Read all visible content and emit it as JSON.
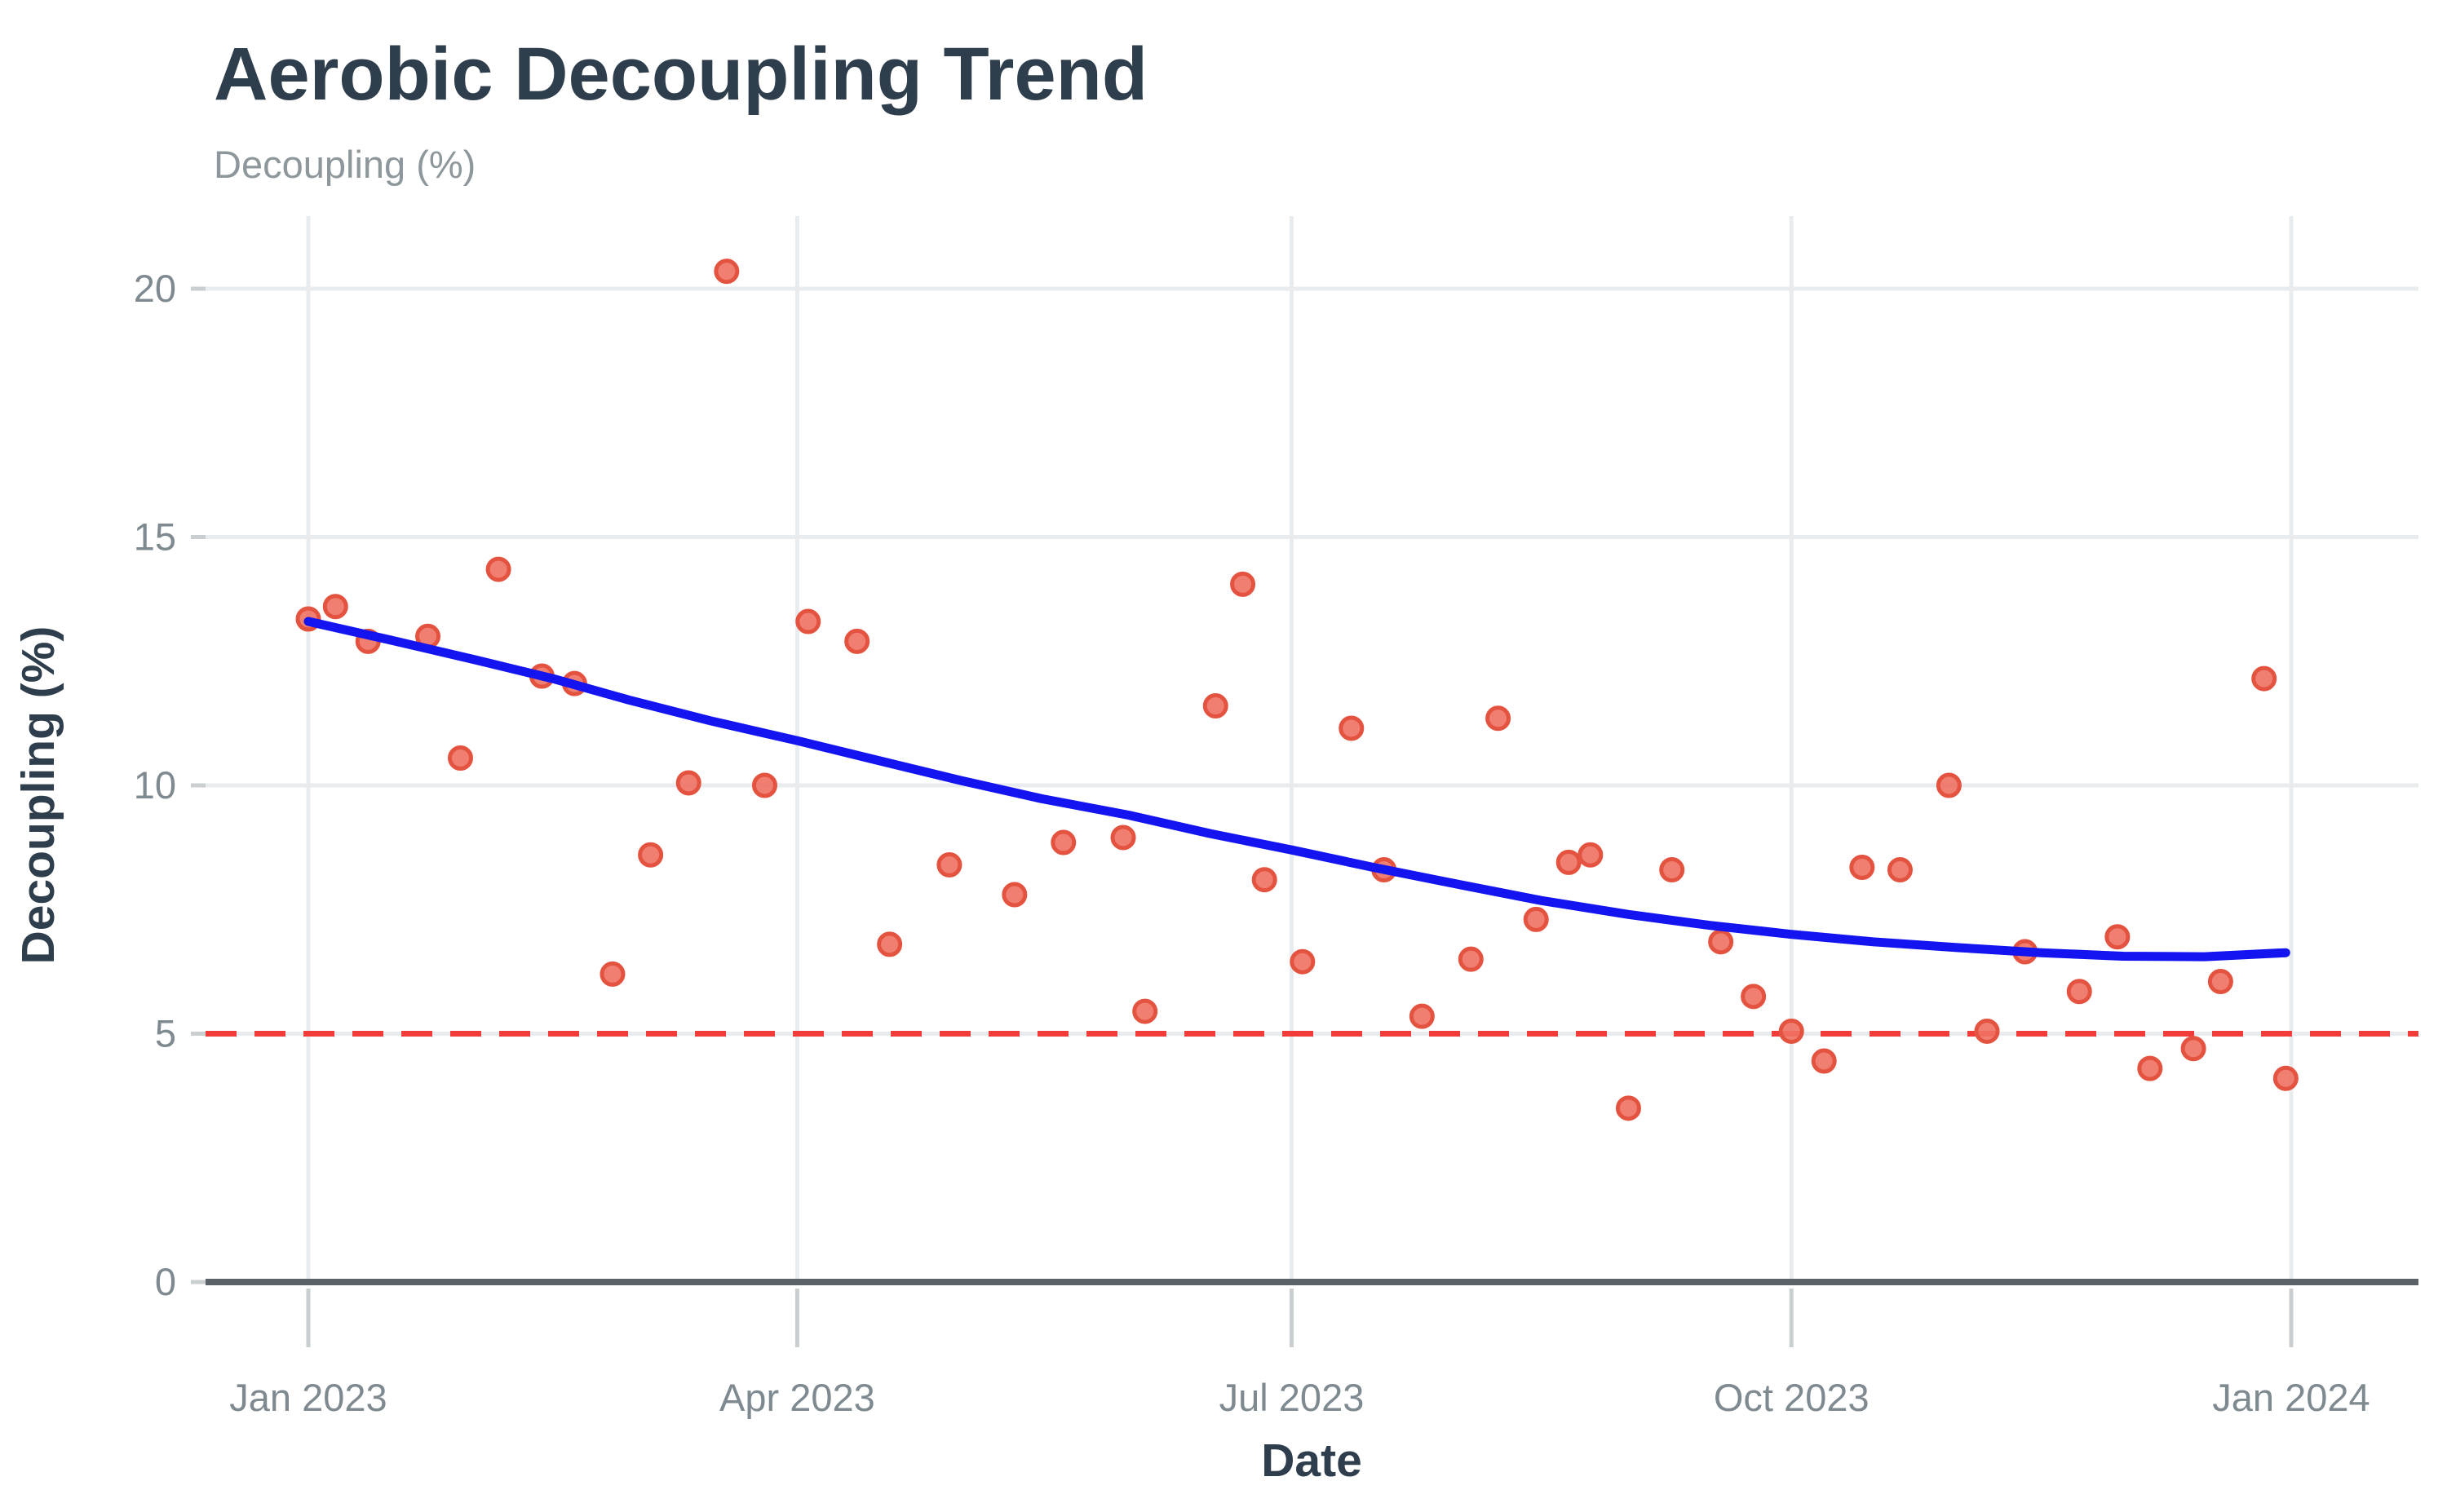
{
  "chart": {
    "title": "Aerobic Decoupling Trend",
    "subtitle": "Decoupling (%)",
    "x_axis_title": "Date",
    "y_axis_title": "Decoupling (%)"
  },
  "chart_data": {
    "type": "scatter",
    "title": "Aerobic Decoupling Trend",
    "subtitle": "Decoupling (%)",
    "xlabel": "Date",
    "ylabel": "Decoupling (%)",
    "x_range": [
      "2023-01-01",
      "2024-01-01"
    ],
    "ylim": [
      0,
      21.5
    ],
    "grid": true,
    "legend": "none",
    "x_ticks": [
      "2023-01-01",
      "2023-04-01",
      "2023-07-01",
      "2023-10-01",
      "2024-01-01"
    ],
    "x_tick_labels": [
      "Jan 2023",
      "Apr 2023",
      "Jul 2023",
      "Oct 2023",
      "Jan 2024"
    ],
    "y_ticks": [
      0,
      5,
      10,
      15,
      20
    ],
    "y_tick_labels": [
      "0",
      "5",
      "10",
      "15",
      "20"
    ],
    "threshold_line": {
      "value": 5,
      "style": "dashed",
      "color": "#f23c39"
    },
    "points": [
      {
        "date": "2023-01-01",
        "value": 13.35
      },
      {
        "date": "2023-01-06",
        "value": 13.6
      },
      {
        "date": "2023-01-12",
        "value": 12.9
      },
      {
        "date": "2023-01-23",
        "value": 13.0
      },
      {
        "date": "2023-01-29",
        "value": 10.55
      },
      {
        "date": "2023-02-05",
        "value": 14.35
      },
      {
        "date": "2023-02-13",
        "value": 12.2
      },
      {
        "date": "2023-02-19",
        "value": 12.05
      },
      {
        "date": "2023-02-26",
        "value": 6.2
      },
      {
        "date": "2023-03-05",
        "value": 8.6
      },
      {
        "date": "2023-03-12",
        "value": 10.05
      },
      {
        "date": "2023-03-19",
        "value": 20.35
      },
      {
        "date": "2023-03-26",
        "value": 10.0
      },
      {
        "date": "2023-04-03",
        "value": 13.3
      },
      {
        "date": "2023-04-12",
        "value": 12.9
      },
      {
        "date": "2023-04-18",
        "value": 6.8
      },
      {
        "date": "2023-04-29",
        "value": 8.4
      },
      {
        "date": "2023-05-11",
        "value": 7.8
      },
      {
        "date": "2023-05-20",
        "value": 8.85
      },
      {
        "date": "2023-05-31",
        "value": 8.95
      },
      {
        "date": "2023-06-04",
        "value": 5.45
      },
      {
        "date": "2023-06-17",
        "value": 11.6
      },
      {
        "date": "2023-06-22",
        "value": 14.05
      },
      {
        "date": "2023-06-26",
        "value": 8.1
      },
      {
        "date": "2023-07-03",
        "value": 6.45
      },
      {
        "date": "2023-07-12",
        "value": 11.15
      },
      {
        "date": "2023-07-18",
        "value": 8.3
      },
      {
        "date": "2023-07-25",
        "value": 5.35
      },
      {
        "date": "2023-08-03",
        "value": 6.5
      },
      {
        "date": "2023-08-08",
        "value": 11.35
      },
      {
        "date": "2023-08-15",
        "value": 7.3
      },
      {
        "date": "2023-08-21",
        "value": 8.45
      },
      {
        "date": "2023-08-25",
        "value": 8.6
      },
      {
        "date": "2023-09-01",
        "value": 3.5
      },
      {
        "date": "2023-09-09",
        "value": 8.3
      },
      {
        "date": "2023-09-18",
        "value": 6.85
      },
      {
        "date": "2023-09-24",
        "value": 5.75
      },
      {
        "date": "2023-10-01",
        "value": 5.05
      },
      {
        "date": "2023-10-07",
        "value": 4.45
      },
      {
        "date": "2023-10-14",
        "value": 8.35
      },
      {
        "date": "2023-10-21",
        "value": 8.3
      },
      {
        "date": "2023-10-30",
        "value": 10.0
      },
      {
        "date": "2023-11-06",
        "value": 5.05
      },
      {
        "date": "2023-11-13",
        "value": 6.65
      },
      {
        "date": "2023-11-23",
        "value": 5.85
      },
      {
        "date": "2023-11-30",
        "value": 6.95
      },
      {
        "date": "2023-12-06",
        "value": 4.3
      },
      {
        "date": "2023-12-14",
        "value": 4.7
      },
      {
        "date": "2023-12-19",
        "value": 6.05
      },
      {
        "date": "2023-12-27",
        "value": 12.15
      },
      {
        "date": "2023-12-31",
        "value": 4.1
      }
    ],
    "trend": {
      "name": "smoothed-trend",
      "color": "#1414f0",
      "samples": [
        {
          "date": "2023-01-01",
          "value": 13.3
        },
        {
          "date": "2023-01-16",
          "value": 12.93
        },
        {
          "date": "2023-02-01",
          "value": 12.52
        },
        {
          "date": "2023-02-15",
          "value": 12.15
        },
        {
          "date": "2023-03-01",
          "value": 11.72
        },
        {
          "date": "2023-03-16",
          "value": 11.3
        },
        {
          "date": "2023-04-01",
          "value": 10.9
        },
        {
          "date": "2023-04-16",
          "value": 10.5
        },
        {
          "date": "2023-05-01",
          "value": 10.1
        },
        {
          "date": "2023-05-16",
          "value": 9.73
        },
        {
          "date": "2023-06-01",
          "value": 9.4
        },
        {
          "date": "2023-06-16",
          "value": 9.03
        },
        {
          "date": "2023-07-01",
          "value": 8.7
        },
        {
          "date": "2023-07-16",
          "value": 8.35
        },
        {
          "date": "2023-08-01",
          "value": 8.0
        },
        {
          "date": "2023-08-16",
          "value": 7.68
        },
        {
          "date": "2023-09-01",
          "value": 7.4
        },
        {
          "date": "2023-09-16",
          "value": 7.18
        },
        {
          "date": "2023-10-01",
          "value": 7.0
        },
        {
          "date": "2023-10-16",
          "value": 6.85
        },
        {
          "date": "2023-11-01",
          "value": 6.73
        },
        {
          "date": "2023-11-16",
          "value": 6.63
        },
        {
          "date": "2023-12-01",
          "value": 6.56
        },
        {
          "date": "2023-12-16",
          "value": 6.55
        },
        {
          "date": "2023-12-31",
          "value": 6.63
        }
      ]
    },
    "colors": {
      "point_fill": "#ee7163",
      "point_stroke": "#e4533f",
      "trend_line": "#1414f0",
      "threshold_line": "#f23c39",
      "gridline": "#e9ecee",
      "axis_line": "#5b6268",
      "tick_mark": "#c9ced1",
      "tick_label": "#7e8a90",
      "title_text": "#2f3e4c",
      "subtitle_text": "#8e979b"
    }
  }
}
